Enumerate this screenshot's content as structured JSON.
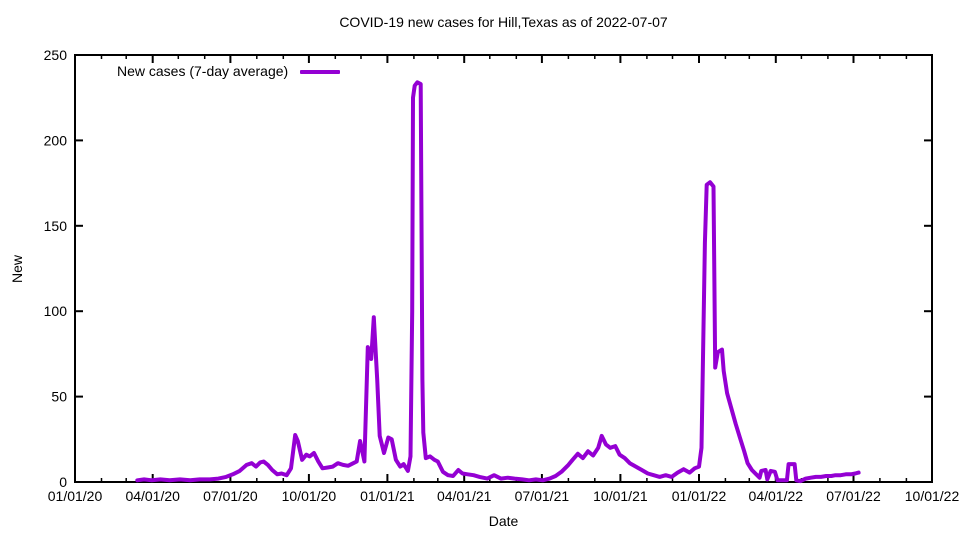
{
  "page": {
    "background": "#ffffff",
    "axis_color": "#000000"
  },
  "chart_data": {
    "type": "line",
    "title": "COVID-19 new cases for Hill,Texas as of 2022-07-07",
    "xlabel": "Date",
    "ylabel": "New",
    "x_range": [
      "2020-01-01",
      "2022-10-01"
    ],
    "ylim": [
      0,
      250
    ],
    "y_ticks": [
      0,
      50,
      100,
      150,
      200,
      250
    ],
    "x_ticks": [
      {
        "date": "2020-01-01",
        "label": "01/01/20"
      },
      {
        "date": "2020-04-01",
        "label": "04/01/20"
      },
      {
        "date": "2020-07-01",
        "label": "07/01/20"
      },
      {
        "date": "2020-10-01",
        "label": "10/01/20"
      },
      {
        "date": "2021-01-01",
        "label": "01/01/21"
      },
      {
        "date": "2021-04-01",
        "label": "04/01/21"
      },
      {
        "date": "2021-07-01",
        "label": "07/01/21"
      },
      {
        "date": "2021-10-01",
        "label": "10/01/21"
      },
      {
        "date": "2022-01-01",
        "label": "01/01/22"
      },
      {
        "date": "2022-04-01",
        "label": "04/01/22"
      },
      {
        "date": "2022-07-01",
        "label": "07/01/22"
      },
      {
        "date": "2022-10-01",
        "label": "10/01/22"
      }
    ],
    "minor_x_ticks": "monthly",
    "grid": false,
    "legend_position": "top-left-inside",
    "series": [
      {
        "name": "New cases (7-day average)",
        "color": "#9400d3",
        "line_width": 4,
        "points": [
          [
            "2020-03-14",
            1
          ],
          [
            "2020-03-22",
            1.5
          ],
          [
            "2020-03-31",
            1
          ],
          [
            "2020-04-10",
            1.5
          ],
          [
            "2020-04-21",
            1
          ],
          [
            "2020-05-03",
            1.5
          ],
          [
            "2020-05-15",
            1
          ],
          [
            "2020-05-26",
            1.5
          ],
          [
            "2020-06-07",
            1.5
          ],
          [
            "2020-06-17",
            2
          ],
          [
            "2020-06-26",
            3
          ],
          [
            "2020-07-04",
            4.5
          ],
          [
            "2020-07-12",
            6.5
          ],
          [
            "2020-07-20",
            10
          ],
          [
            "2020-07-26",
            11
          ],
          [
            "2020-07-31",
            9
          ],
          [
            "2020-08-05",
            11.5
          ],
          [
            "2020-08-09",
            12
          ],
          [
            "2020-08-14",
            10
          ],
          [
            "2020-08-19",
            7
          ],
          [
            "2020-08-25",
            4.5
          ],
          [
            "2020-08-30",
            5
          ],
          [
            "2020-09-05",
            4
          ],
          [
            "2020-09-10",
            8
          ],
          [
            "2020-09-15",
            27.5
          ],
          [
            "2020-09-18",
            24
          ],
          [
            "2020-09-23",
            13
          ],
          [
            "2020-09-28",
            16
          ],
          [
            "2020-10-02",
            15
          ],
          [
            "2020-10-07",
            17
          ],
          [
            "2020-10-12",
            12
          ],
          [
            "2020-10-17",
            8
          ],
          [
            "2020-10-23",
            8.5
          ],
          [
            "2020-10-29",
            9
          ],
          [
            "2020-11-04",
            11
          ],
          [
            "2020-11-10",
            10
          ],
          [
            "2020-11-16",
            9.5
          ],
          [
            "2020-11-22",
            11
          ],
          [
            "2020-11-26",
            12
          ],
          [
            "2020-11-30",
            24
          ],
          [
            "2020-12-05",
            12
          ],
          [
            "2020-12-09",
            79
          ],
          [
            "2020-12-13",
            72
          ],
          [
            "2020-12-16",
            96.5
          ],
          [
            "2020-12-20",
            60
          ],
          [
            "2020-12-23",
            27
          ],
          [
            "2020-12-28",
            17
          ],
          [
            "2021-01-02",
            26
          ],
          [
            "2021-01-06",
            25
          ],
          [
            "2021-01-11",
            13
          ],
          [
            "2021-01-16",
            9
          ],
          [
            "2021-01-20",
            10.5
          ],
          [
            "2021-01-25",
            6.5
          ],
          [
            "2021-01-28",
            15
          ],
          [
            "2021-01-30",
            100
          ],
          [
            "2021-01-31",
            225
          ],
          [
            "2021-02-02",
            232
          ],
          [
            "2021-02-05",
            234
          ],
          [
            "2021-02-09",
            233
          ],
          [
            "2021-02-11",
            60
          ],
          [
            "2021-02-12",
            29
          ],
          [
            "2021-02-15",
            14
          ],
          [
            "2021-02-20",
            15
          ],
          [
            "2021-02-25",
            13
          ],
          [
            "2021-03-01",
            12
          ],
          [
            "2021-03-07",
            6
          ],
          [
            "2021-03-13",
            4
          ],
          [
            "2021-03-19",
            3.5
          ],
          [
            "2021-03-25",
            7
          ],
          [
            "2021-03-30",
            5
          ],
          [
            "2021-04-05",
            4.5
          ],
          [
            "2021-04-12",
            4
          ],
          [
            "2021-04-19",
            3
          ],
          [
            "2021-04-28",
            2
          ],
          [
            "2021-05-06",
            4
          ],
          [
            "2021-05-14",
            2
          ],
          [
            "2021-05-22",
            2.5
          ],
          [
            "2021-05-30",
            2
          ],
          [
            "2021-06-08",
            1.5
          ],
          [
            "2021-06-16",
            1
          ],
          [
            "2021-06-24",
            1.5
          ],
          [
            "2021-07-02",
            1
          ],
          [
            "2021-07-10",
            2
          ],
          [
            "2021-07-17",
            3.5
          ],
          [
            "2021-07-24",
            6
          ],
          [
            "2021-08-01",
            10
          ],
          [
            "2021-08-06",
            13
          ],
          [
            "2021-08-12",
            16.5
          ],
          [
            "2021-08-18",
            14
          ],
          [
            "2021-08-24",
            18
          ],
          [
            "2021-08-30",
            15.5
          ],
          [
            "2021-09-05",
            20
          ],
          [
            "2021-09-09",
            27
          ],
          [
            "2021-09-14",
            22
          ],
          [
            "2021-09-19",
            20
          ],
          [
            "2021-09-25",
            21
          ],
          [
            "2021-09-30",
            16
          ],
          [
            "2021-10-06",
            14
          ],
          [
            "2021-10-12",
            11
          ],
          [
            "2021-10-19",
            9
          ],
          [
            "2021-10-26",
            7
          ],
          [
            "2021-11-02",
            5
          ],
          [
            "2021-11-09",
            4
          ],
          [
            "2021-11-16",
            3
          ],
          [
            "2021-11-23",
            4
          ],
          [
            "2021-11-30",
            3
          ],
          [
            "2021-12-07",
            5.5
          ],
          [
            "2021-12-14",
            7.5
          ],
          [
            "2021-12-21",
            5.5
          ],
          [
            "2021-12-27",
            8
          ],
          [
            "2022-01-01",
            9
          ],
          [
            "2022-01-04",
            20
          ],
          [
            "2022-01-06",
            80
          ],
          [
            "2022-01-08",
            140
          ],
          [
            "2022-01-10",
            174
          ],
          [
            "2022-01-14",
            175.5
          ],
          [
            "2022-01-18",
            173
          ],
          [
            "2022-01-20",
            67
          ],
          [
            "2022-01-23",
            76
          ],
          [
            "2022-01-28",
            77.5
          ],
          [
            "2022-01-30",
            65
          ],
          [
            "2022-02-03",
            52
          ],
          [
            "2022-02-08",
            43
          ],
          [
            "2022-02-13",
            34
          ],
          [
            "2022-02-18",
            26
          ],
          [
            "2022-02-23",
            18
          ],
          [
            "2022-02-27",
            11
          ],
          [
            "2022-03-04",
            7
          ],
          [
            "2022-03-09",
            4.5
          ],
          [
            "2022-03-13",
            2.5
          ],
          [
            "2022-03-15",
            6.5
          ],
          [
            "2022-03-20",
            7
          ],
          [
            "2022-03-22",
            1.5
          ],
          [
            "2022-03-26",
            6.5
          ],
          [
            "2022-03-31",
            6
          ],
          [
            "2022-04-03",
            1
          ],
          [
            "2022-04-08",
            1
          ],
          [
            "2022-04-14",
            1
          ],
          [
            "2022-04-16",
            10.5
          ],
          [
            "2022-04-23",
            10.5
          ],
          [
            "2022-04-25",
            1
          ],
          [
            "2022-04-30",
            0.5
          ],
          [
            "2022-05-06",
            2
          ],
          [
            "2022-05-12",
            2.5
          ],
          [
            "2022-05-18",
            3
          ],
          [
            "2022-05-24",
            3
          ],
          [
            "2022-05-30",
            3.5
          ],
          [
            "2022-06-05",
            3.5
          ],
          [
            "2022-06-10",
            4
          ],
          [
            "2022-06-16",
            4
          ],
          [
            "2022-06-22",
            4.5
          ],
          [
            "2022-06-28",
            4.5
          ],
          [
            "2022-07-03",
            5
          ],
          [
            "2022-07-07",
            5.5
          ]
        ]
      }
    ]
  }
}
